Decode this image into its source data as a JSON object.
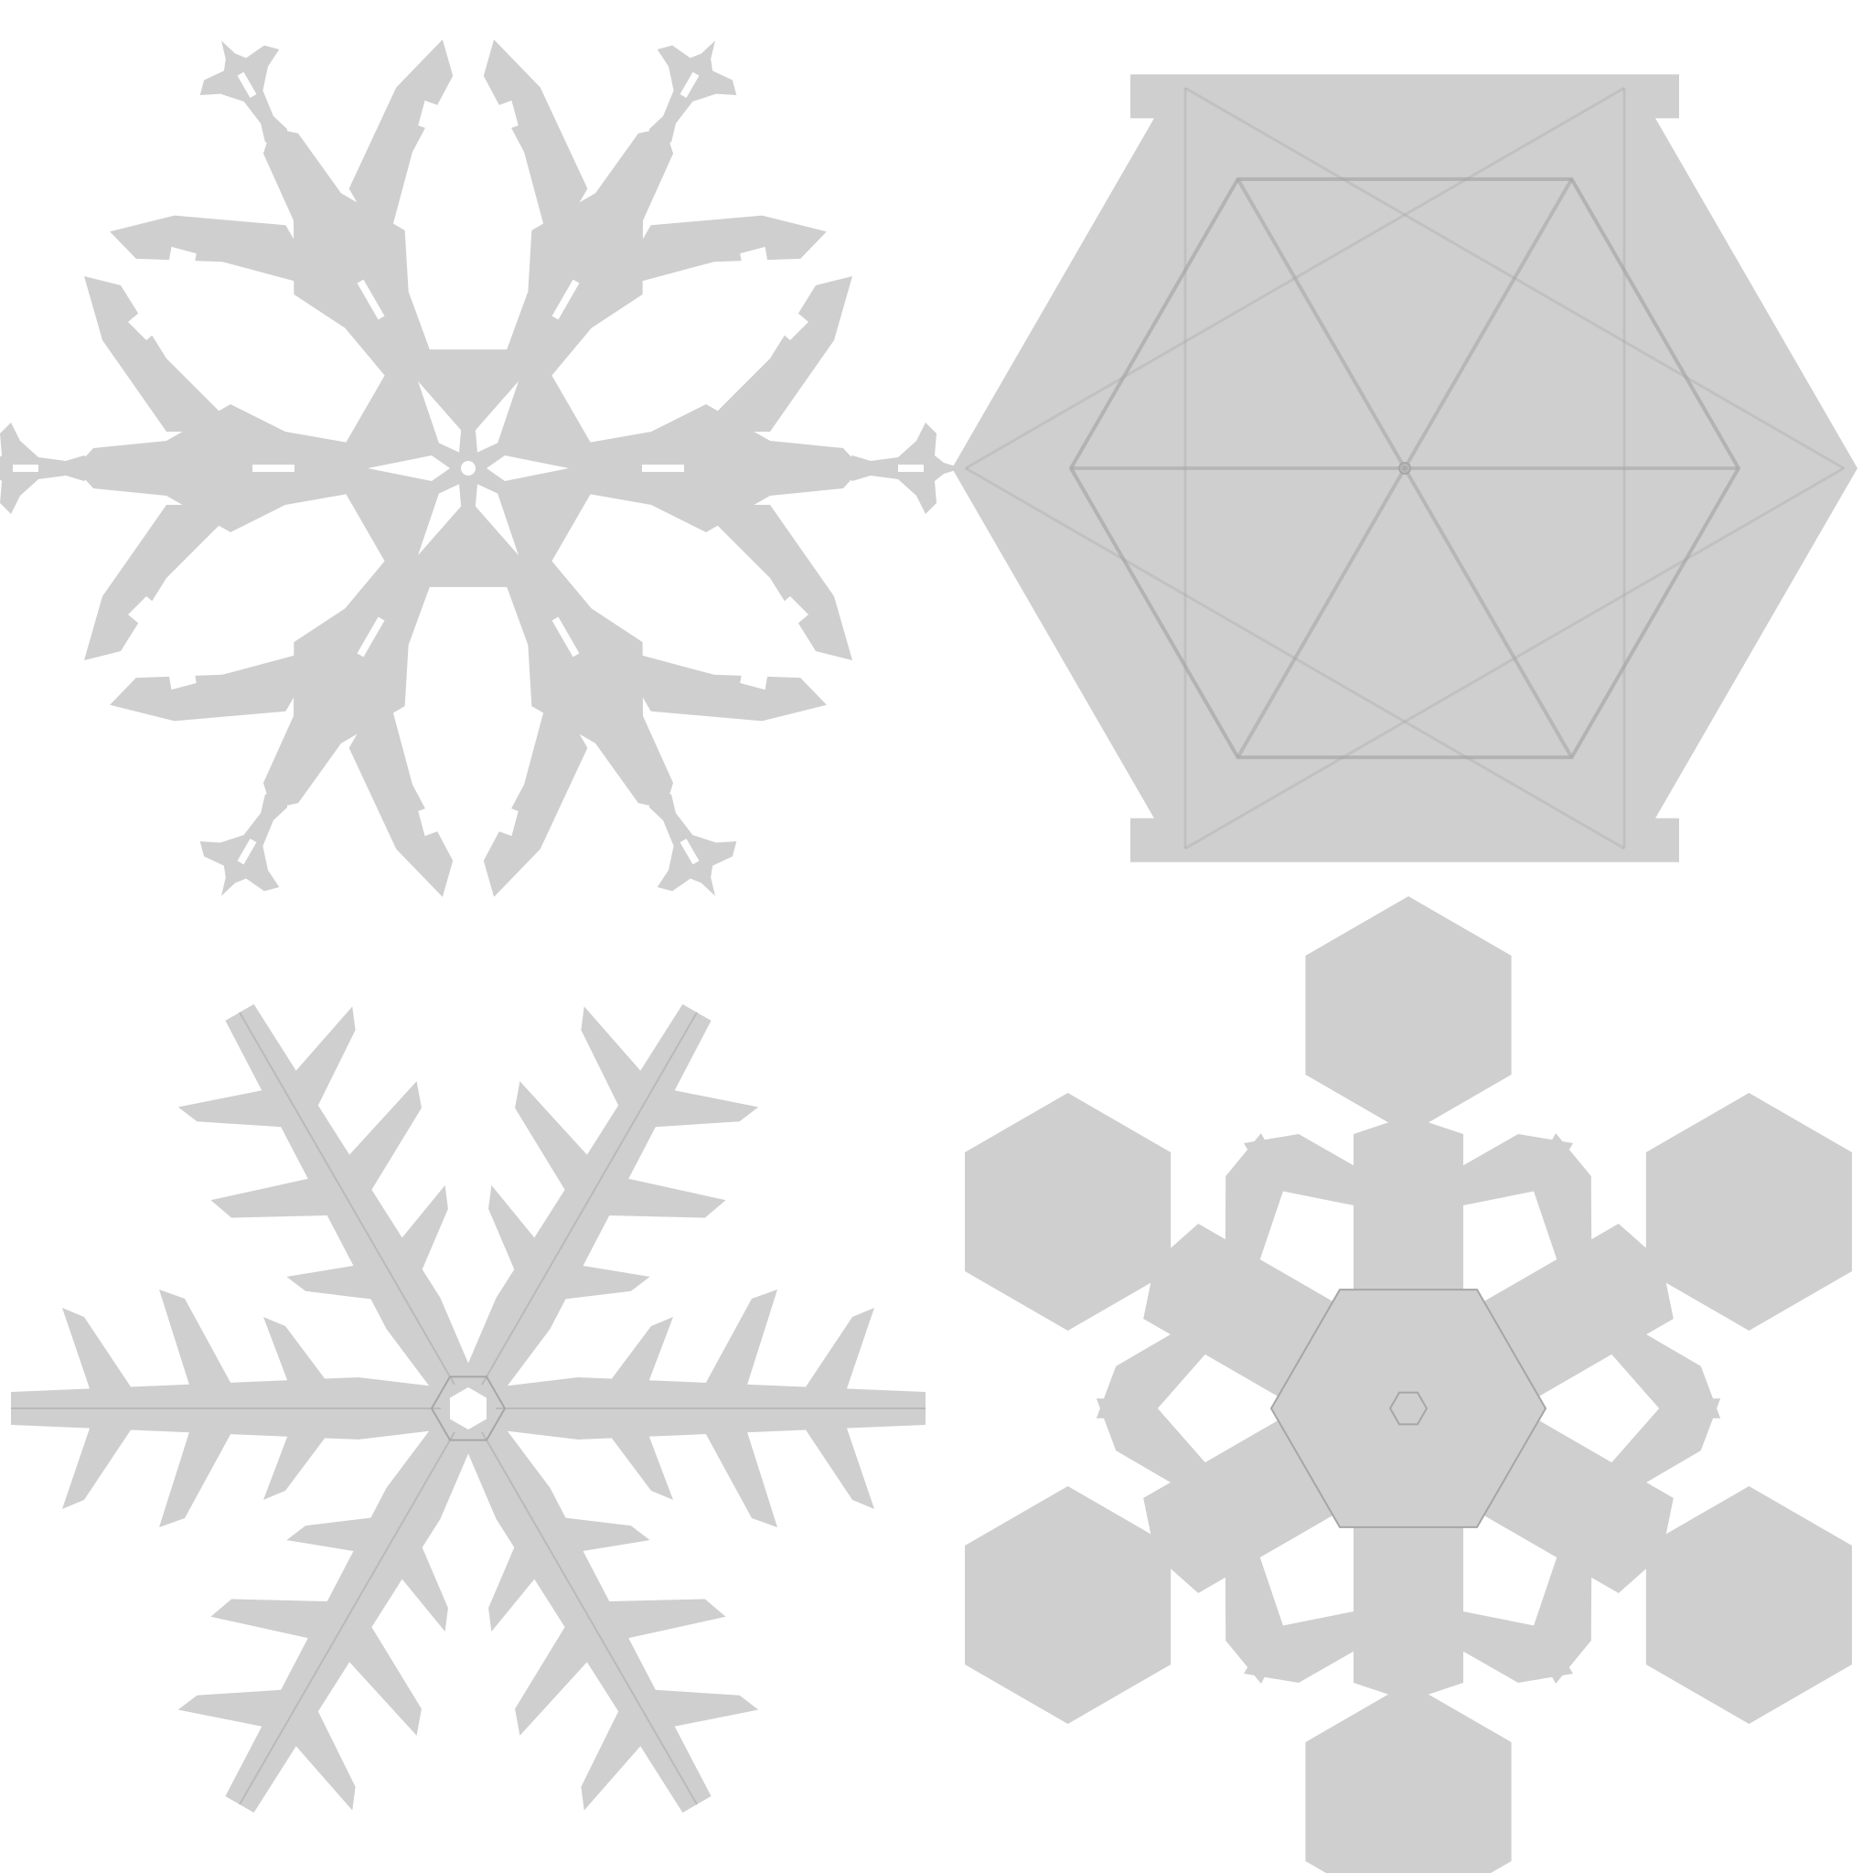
{
  "scene": {
    "background_color": "#ffffff",
    "flake_color": "#cfcfcf",
    "crease_color": "#a6a6a6",
    "hole_color": "#ffffff"
  },
  "flakes": [
    {
      "name": "stellar-dendrite-ornate-snowflake",
      "style": "lace-dendrite"
    },
    {
      "name": "hexagonal-plate-snowflake",
      "style": "faceted-plate"
    },
    {
      "name": "fernlike-dendrite-snowflake",
      "style": "fern-dendrite"
    },
    {
      "name": "sectored-plate-with-hexagon-tips-snowflake",
      "style": "broad-branch-plate"
    }
  ]
}
